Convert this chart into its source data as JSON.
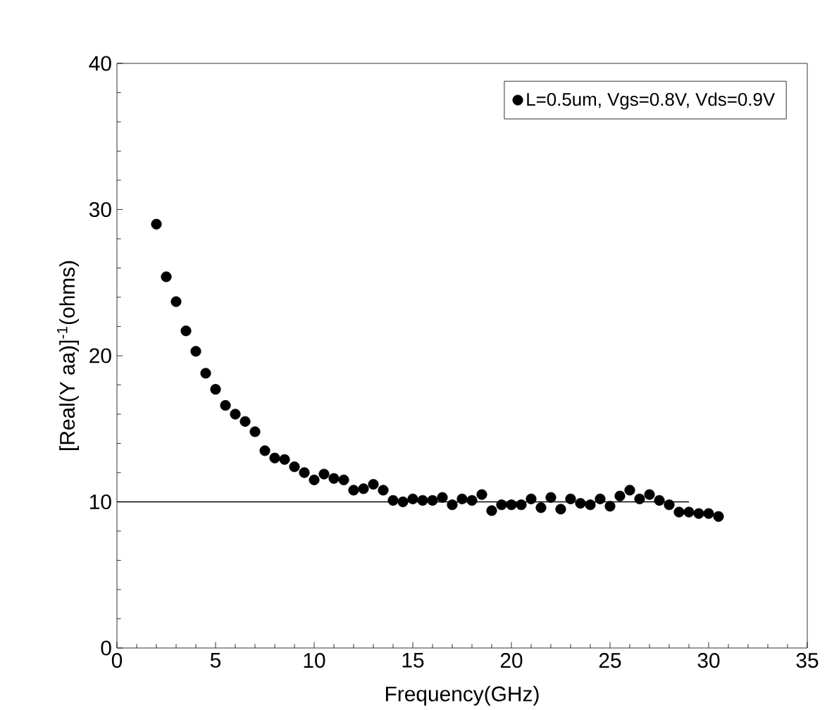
{
  "chart_data": {
    "type": "scatter",
    "xlabel": "Frequency(GHz)",
    "ylabel": "[Real(Y aa)]$^{-1}$(ohms)",
    "xlim": [
      0,
      35
    ],
    "ylim": [
      0,
      40
    ],
    "xticks": [
      0,
      5,
      10,
      15,
      20,
      25,
      30,
      35
    ],
    "yticks": [
      0,
      10,
      20,
      30,
      40
    ],
    "legend": "top right",
    "grid": false,
    "series": [
      {
        "name": "L=0.5um, Vgs=0.8V, Vds=0.9V",
        "color": "#000000",
        "marker": "circle",
        "x": [
          2,
          2.5,
          3,
          3.5,
          4,
          4.5,
          5,
          5.5,
          6,
          6.5,
          7,
          7.5,
          8,
          8.5,
          9,
          9.5,
          10,
          10.5,
          11,
          11.5,
          12,
          12.5,
          13,
          13.5,
          14,
          14.5,
          15,
          15.5,
          16,
          16.5,
          17,
          17.5,
          18,
          18.5,
          19,
          19.5,
          20,
          20.5,
          21,
          21.5,
          22,
          22.5,
          23,
          23.5,
          24,
          24.5,
          25,
          25.5,
          26,
          26.5,
          27,
          27.5,
          28,
          28.5,
          29,
          29.5,
          30,
          30.5
        ],
        "values": [
          29,
          25.4,
          23.7,
          21.7,
          20.3,
          18.8,
          17.7,
          16.6,
          16,
          15.5,
          14.8,
          13.5,
          13,
          12.9,
          12.4,
          12,
          11.5,
          11.9,
          11.6,
          11.5,
          10.8,
          10.9,
          11.2,
          10.8,
          10.1,
          10,
          10.2,
          10.1,
          10.1,
          10.3,
          9.8,
          10.2,
          10.1,
          10.5,
          9.4,
          9.8,
          9.8,
          9.8,
          10.2,
          9.6,
          10.3,
          9.5,
          10.2,
          9.9,
          9.8,
          10.2,
          9.7,
          10.4,
          10.8,
          10.2,
          10.5,
          10.1,
          9.8,
          9.3,
          9.3,
          9.2,
          9.2,
          9.0
        ]
      },
      {
        "type": "line",
        "color": "#000000",
        "marker": "none",
        "x": [
          0,
          29
        ],
        "values": [
          10,
          10
        ]
      }
    ]
  }
}
